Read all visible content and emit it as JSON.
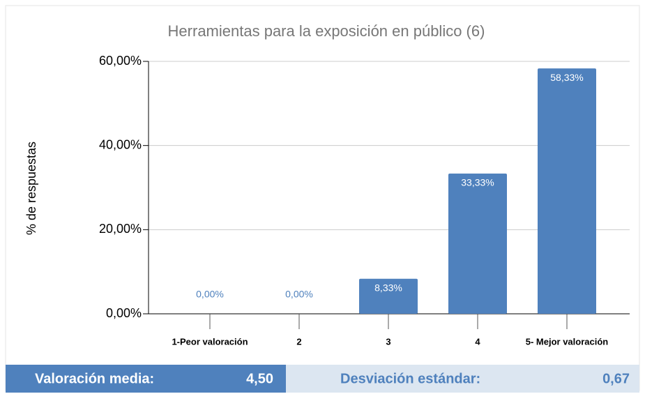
{
  "chart_data": {
    "type": "bar",
    "title": "Herramientas para la exposición en público (6)",
    "y_label": "% de respuestas",
    "categories": [
      "1-Peor valoración",
      "2",
      "3",
      "4",
      "5- Mejor valoración"
    ],
    "values": [
      0,
      0,
      8.33,
      33.33,
      58.33
    ],
    "value_labels": [
      "0,00%",
      "0,00%",
      "8,33%",
      "33,33%",
      "58,33%"
    ],
    "color": "#4f81bd",
    "ylim": [
      0,
      60
    ],
    "yticks": [
      {
        "value": 0,
        "label": "0,00%"
      },
      {
        "value": 20,
        "label": "20,00%"
      },
      {
        "value": 40,
        "label": "40,00%"
      },
      {
        "value": 60,
        "label": "60,00%"
      }
    ],
    "grid": true
  },
  "stats": {
    "mean_label": "Valoración media:",
    "mean_value": "4,50",
    "sd_label": "Desviación estándar:",
    "sd_value": "0,67"
  }
}
